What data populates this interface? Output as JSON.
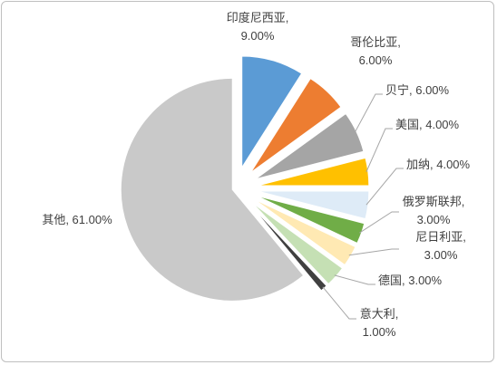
{
  "chart_data": {
    "type": "pie",
    "title": "",
    "exploded": true,
    "start_angle_deg": 0,
    "direction": "clockwise",
    "slices": [
      {
        "name": "印度尼西亚",
        "value": 9.0,
        "label_lines": [
          "印度尼西亚,",
          "9.00%"
        ],
        "color": "#5b9bd5"
      },
      {
        "name": "哥伦比亚",
        "value": 6.0,
        "label_lines": [
          "哥伦比亚,",
          "6.00%"
        ],
        "color": "#ed7d31"
      },
      {
        "name": "贝宁",
        "value": 6.0,
        "label_lines": [
          "贝宁, 6.00%"
        ],
        "color": "#a5a5a5"
      },
      {
        "name": "美国",
        "value": 4.0,
        "label_lines": [
          "美国, 4.00%"
        ],
        "color": "#ffc000"
      },
      {
        "name": "加纳",
        "value": 4.0,
        "label_lines": [
          "加纳, 4.00%"
        ],
        "color": "#deebf7"
      },
      {
        "name": "俄罗斯联邦",
        "value": 3.0,
        "label_lines": [
          "俄罗斯联邦,",
          "3.00%"
        ],
        "color": "#70ad47"
      },
      {
        "name": "尼日利亚",
        "value": 3.0,
        "label_lines": [
          "尼日利亚,",
          "3.00%"
        ],
        "color": "#ffe9b3"
      },
      {
        "name": "德国",
        "value": 3.0,
        "label_lines": [
          "德国, 3.00%"
        ],
        "color": "#c5e0b4"
      },
      {
        "name": "意大利",
        "value": 1.0,
        "label_lines": [
          "意大利,",
          "1.00%"
        ],
        "color": "#404040"
      },
      {
        "name": "其他",
        "value": 61.0,
        "label_lines": [
          "其他, 61.00%"
        ],
        "color": "#c9c9c9"
      }
    ]
  }
}
